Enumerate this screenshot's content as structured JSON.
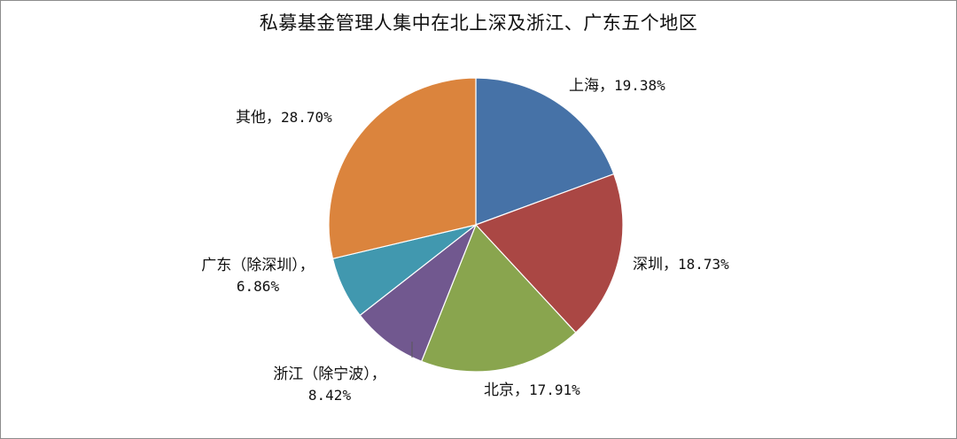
{
  "chart_data": {
    "type": "pie",
    "title": "私募基金管理人集中在北上深及浙江、广东五个地区",
    "slices": [
      {
        "name": "上海",
        "value": 19.38,
        "label_name": "上海，",
        "label_value": "19.38%",
        "color": "#4672a7"
      },
      {
        "name": "深圳",
        "value": 18.73,
        "label_name": "深圳，",
        "label_value": "18.73%",
        "color": "#aa4744"
      },
      {
        "name": "北京",
        "value": 17.91,
        "label_name": "北京，",
        "label_value": "17.91%",
        "color": "#89a54e"
      },
      {
        "name": "浙江（除宁波）",
        "value": 8.42,
        "label_name": "浙江（除宁波），",
        "label_value": "8.42%",
        "color": "#71588f"
      },
      {
        "name": "广东（除深圳）",
        "value": 6.86,
        "label_name": "广东（除深圳），",
        "label_value": "6.86%",
        "color": "#4198af"
      },
      {
        "name": "其他",
        "value": 28.7,
        "label_name": "其他，",
        "label_value": "28.70%",
        "color": "#db843d"
      }
    ],
    "start_angle_deg": 0,
    "direction": "clockwise",
    "legend": "none"
  }
}
